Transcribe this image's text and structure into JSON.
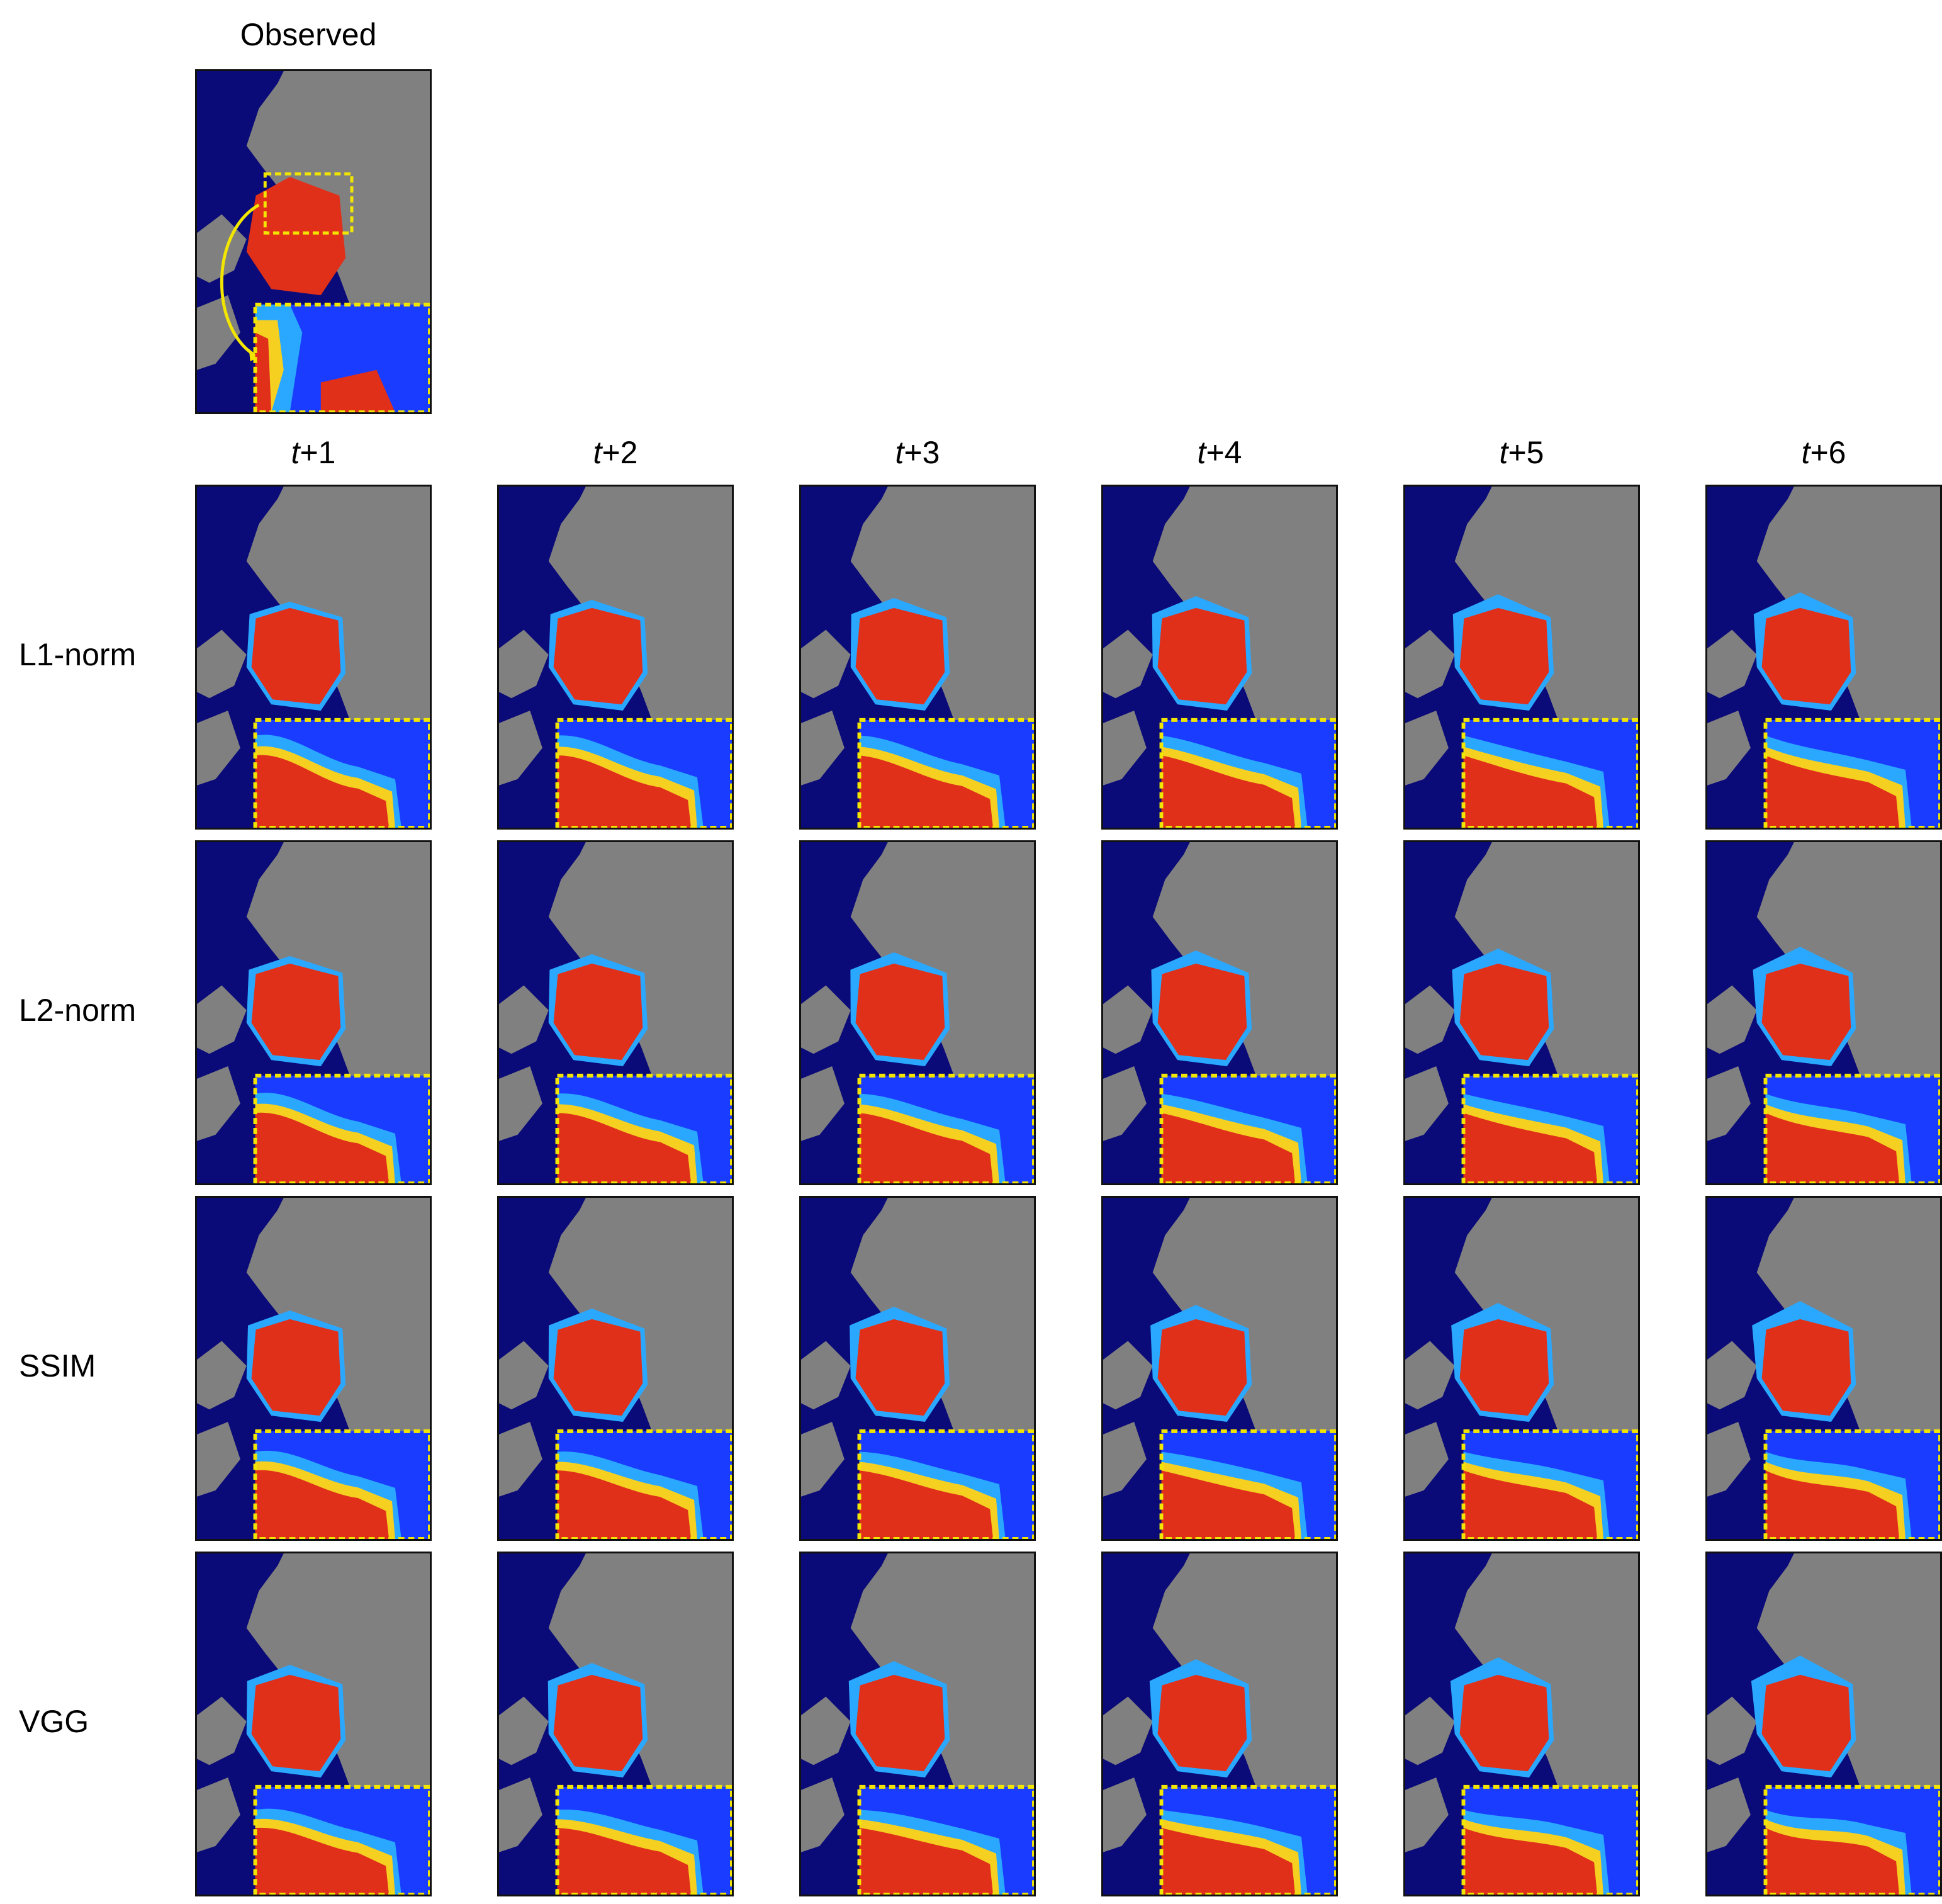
{
  "observed_title": "Observed",
  "columns": [
    "+1",
    "+2",
    "+3",
    "+4",
    "+5",
    "+6"
  ],
  "column_prefix": "t",
  "rows": [
    "L1-norm",
    "L2-norm",
    "SSIM",
    "VGG"
  ],
  "colors": {
    "ocean": "#0a0a78",
    "land": "#808080",
    "high": "#e0301a",
    "mid": "#f5d020",
    "low_mid": "#2aa8ff",
    "low": "#1a3cff",
    "highlight_box": "#f2e600"
  }
}
